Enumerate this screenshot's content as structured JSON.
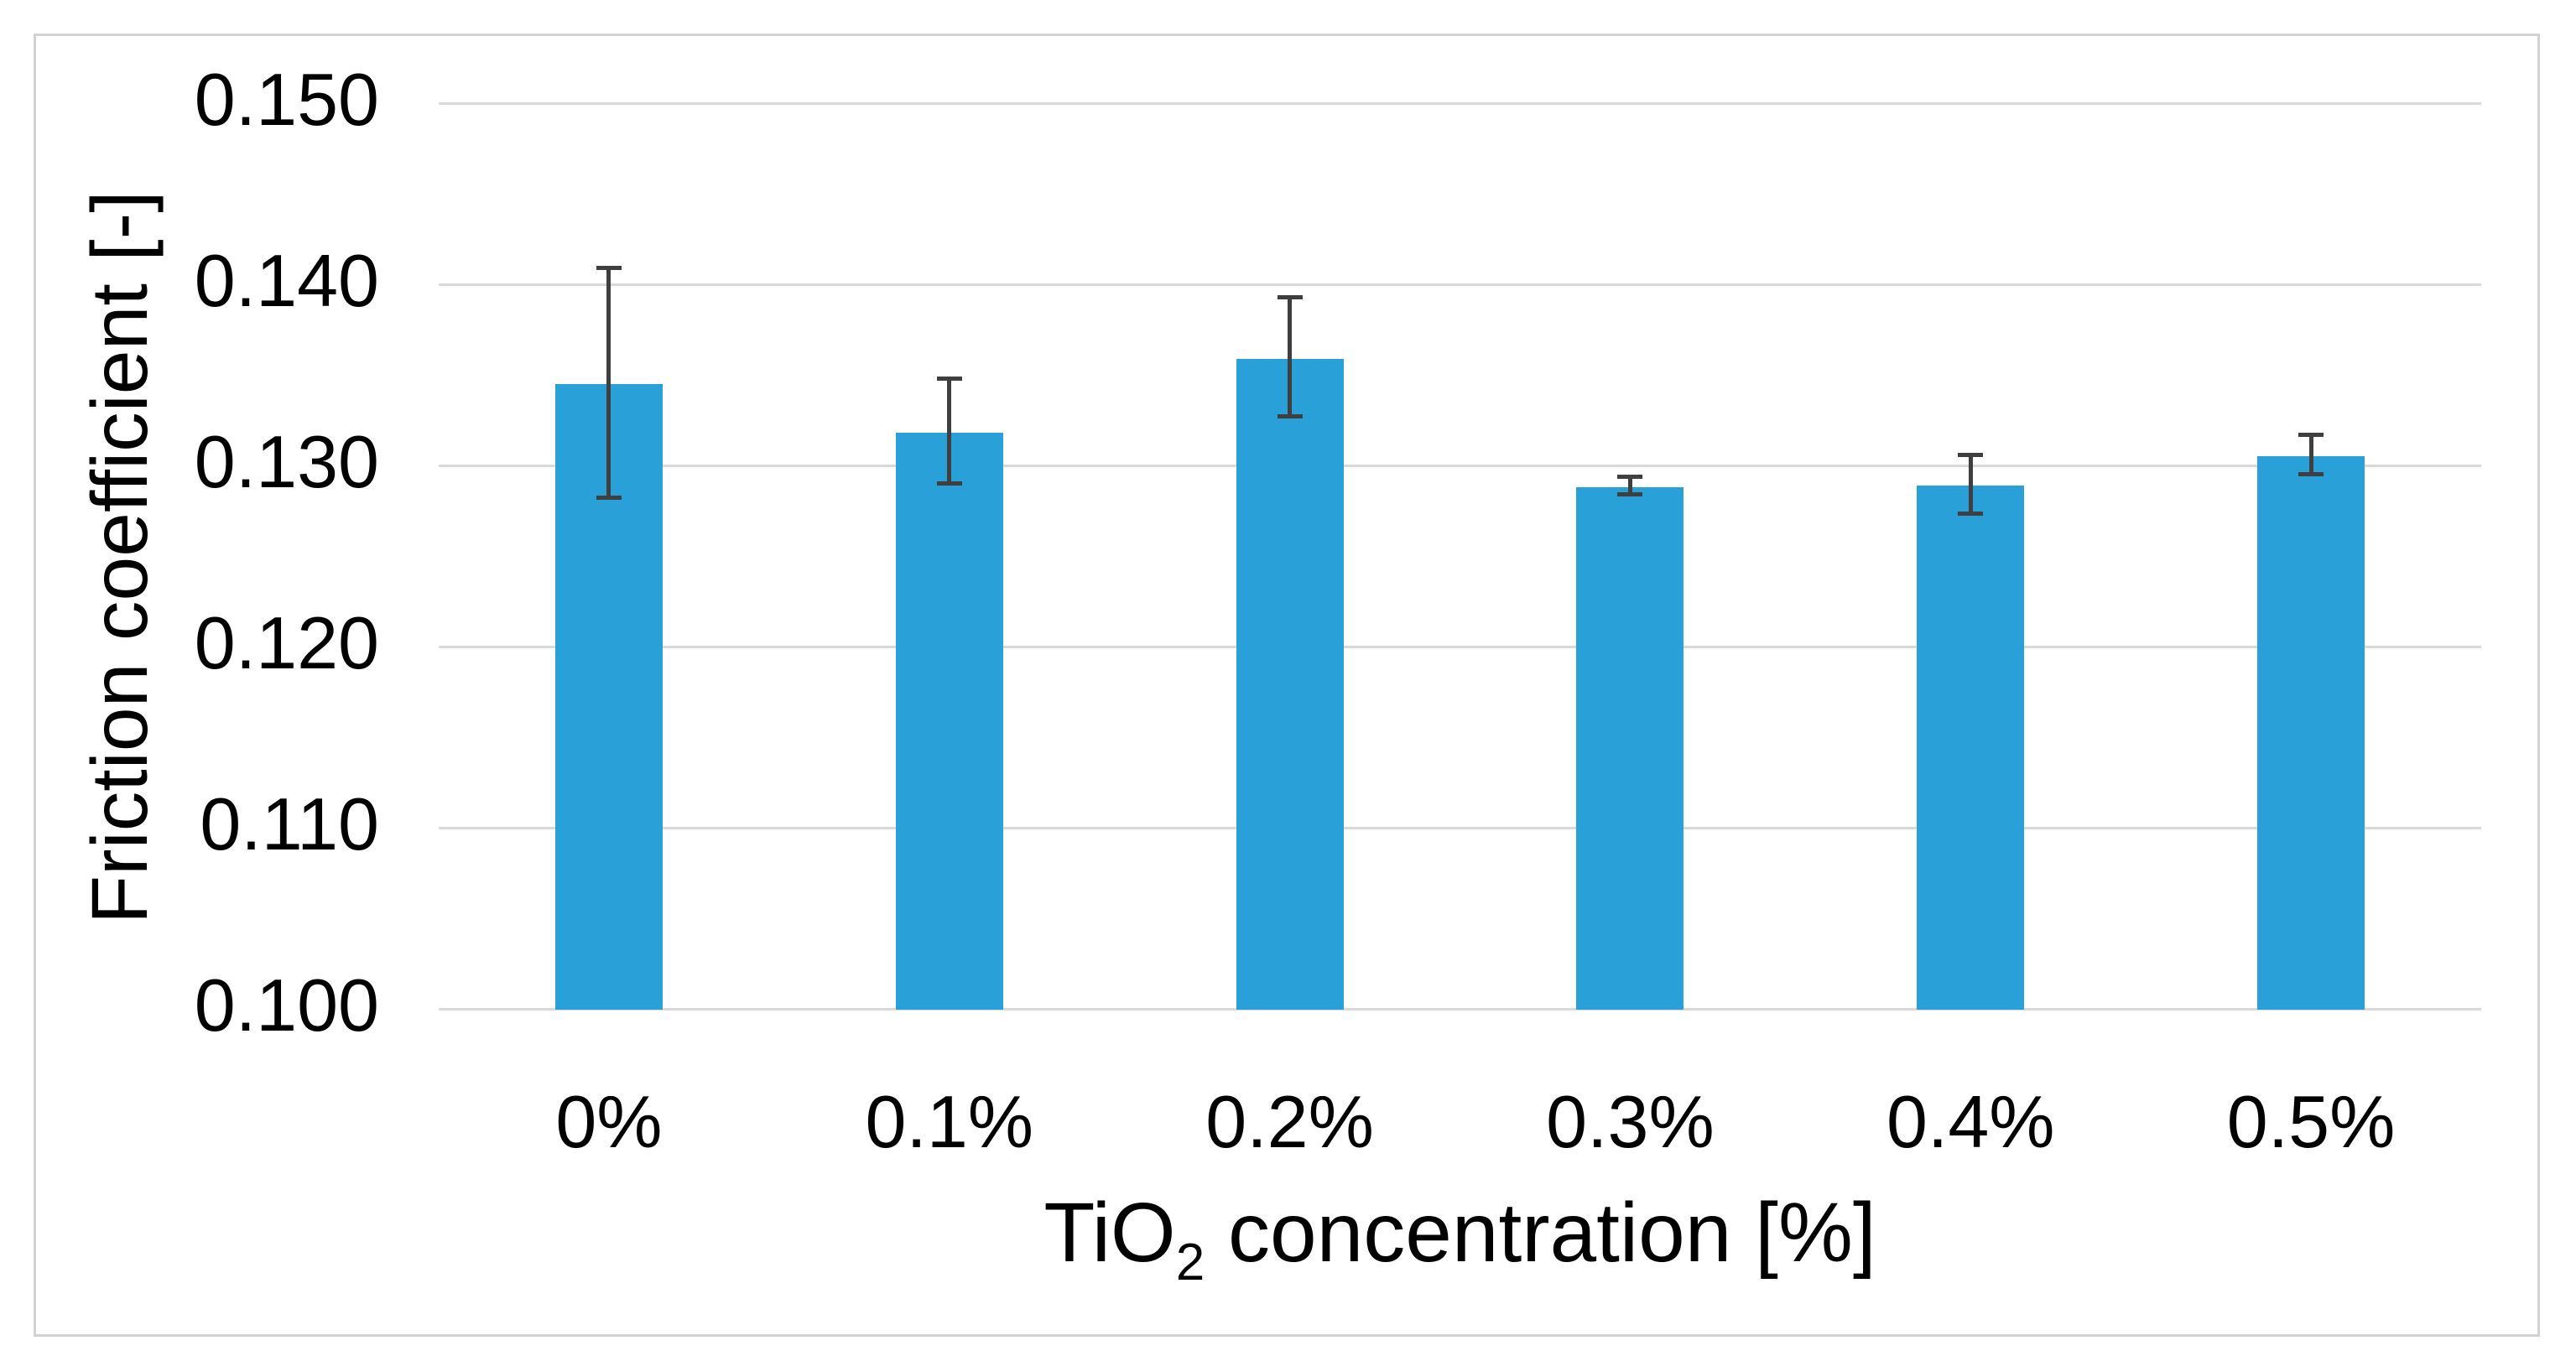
{
  "figure": {
    "background_color": "#FFFFFF",
    "border_color": "#D2D2D2"
  },
  "chart_data": {
    "type": "bar",
    "title": "",
    "categories": [
      "0%",
      "0.1%",
      "0.2%",
      "0.3%",
      "0.4%",
      "0.5%"
    ],
    "series": [
      {
        "name": "Friction coefficient",
        "values": [
          0.1345,
          0.1318,
          0.1359,
          0.1288,
          0.1289,
          0.1305
        ],
        "error_plus": [
          0.0065,
          0.0031,
          0.0035,
          0.0007,
          0.0018,
          0.0013
        ],
        "error_minus": [
          0.0064,
          0.0029,
          0.0033,
          0.0005,
          0.0017,
          0.0011
        ]
      }
    ],
    "xlabel": "TiO2 concentration [%]",
    "xlabel_parts": {
      "base": "TiO",
      "subscript": "2",
      "rest": " concentration [%]"
    },
    "ylabel": "Friction coefficient [-]",
    "ylim": [
      0.1,
      0.15
    ],
    "ytick_step": 0.01,
    "yticks": [
      "0.150",
      "0.140",
      "0.130",
      "0.120",
      "0.110",
      "0.100"
    ],
    "grid": "horizontal",
    "legend": "none",
    "colors": {
      "bar": "#29A0D7",
      "error_bar": "#3F3F3F",
      "gridline": "#D9D9D9",
      "text": "#000000"
    }
  }
}
